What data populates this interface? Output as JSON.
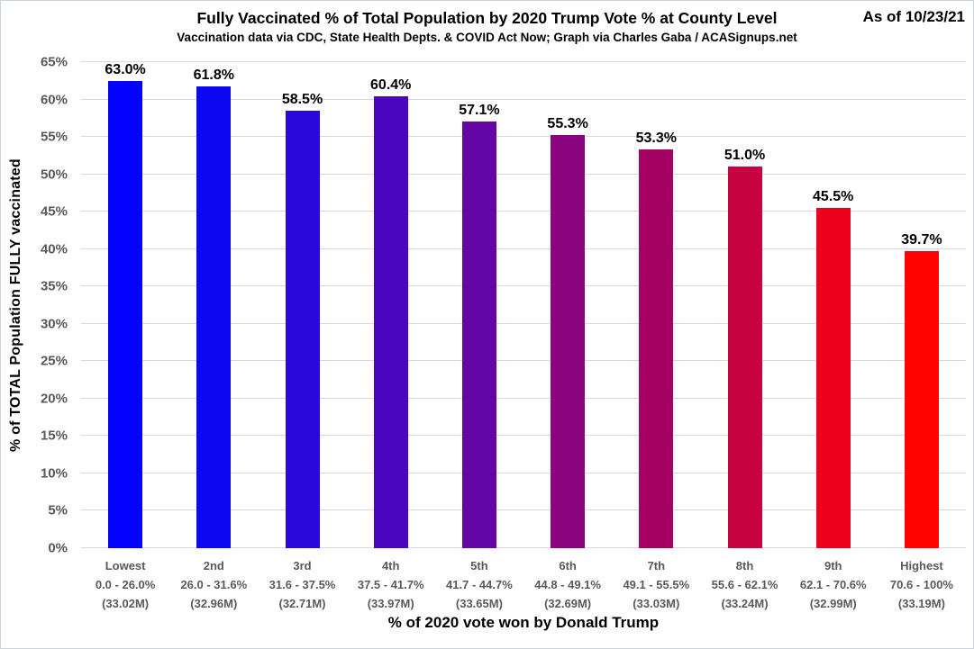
{
  "header": {
    "title": "Fully Vaccinated % of Total Population by 2020 Trump Vote % at County Level",
    "subtitle": "Vaccination data via CDC, State Health Depts. & COVID Act Now; Graph via Charles Gaba / ACASignups.net",
    "as_of": "As of 10/23/21"
  },
  "chart_data": {
    "type": "bar",
    "title": "Fully Vaccinated % of Total Population by 2020 Trump Vote % at County Level",
    "subtitle": "Vaccination data via CDC, State Health Depts. & COVID Act Now; Graph via Charles Gaba / ACASignups.net",
    "as_of": "As of 10/23/21",
    "xlabel": "% of 2020 vote won by Donald Trump",
    "ylabel": "% of TOTAL Population FULLY vaccinated",
    "ylim": [
      0,
      65
    ],
    "ytick_step": 5,
    "ytick_suffix": "%",
    "grid": true,
    "legend": "none",
    "categories": [
      {
        "label": "Lowest",
        "range": "0.0 - 26.0%",
        "population": "(33.02M)"
      },
      {
        "label": "2nd",
        "range": "26.0 - 31.6%",
        "population": "(32.96M)"
      },
      {
        "label": "3rd",
        "range": "31.6 - 37.5%",
        "population": "(32.71M)"
      },
      {
        "label": "4th",
        "range": "37.5 - 41.7%",
        "population": "(33.97M)"
      },
      {
        "label": "5th",
        "range": "41.7 - 44.7%",
        "population": "(33.65M)"
      },
      {
        "label": "6th",
        "range": "44.8 - 49.1%",
        "population": "(32.69M)"
      },
      {
        "label": "7th",
        "range": "49.1 - 55.5%",
        "population": "(33.03M)"
      },
      {
        "label": "8th",
        "range": "55.6 - 62.1%",
        "population": "(33.24M)"
      },
      {
        "label": "9th",
        "range": "62.1 - 70.6%",
        "population": "(32.99M)"
      },
      {
        "label": "Highest",
        "range": "70.6 - 100%",
        "population": "(33.19M)"
      }
    ],
    "values": [
      63.0,
      61.8,
      58.5,
      60.4,
      57.1,
      55.3,
      53.3,
      51.0,
      45.5,
      39.7
    ],
    "value_labels": [
      "63.0%",
      "61.8%",
      "58.5%",
      "60.4%",
      "57.1%",
      "55.3%",
      "53.3%",
      "51.0%",
      "45.5%",
      "39.7%"
    ],
    "bar_colors": [
      "#0303fd",
      "#0d07f2",
      "#2a07da",
      "#4a06be",
      "#6405a6",
      "#8a0480",
      "#a40363",
      "#c70241",
      "#ec011a",
      "#fe0202"
    ],
    "colors": {
      "grid": "#d9d9d9",
      "axis_text": "#595959",
      "value_text": "#000000",
      "border": "#ccd4de"
    }
  }
}
